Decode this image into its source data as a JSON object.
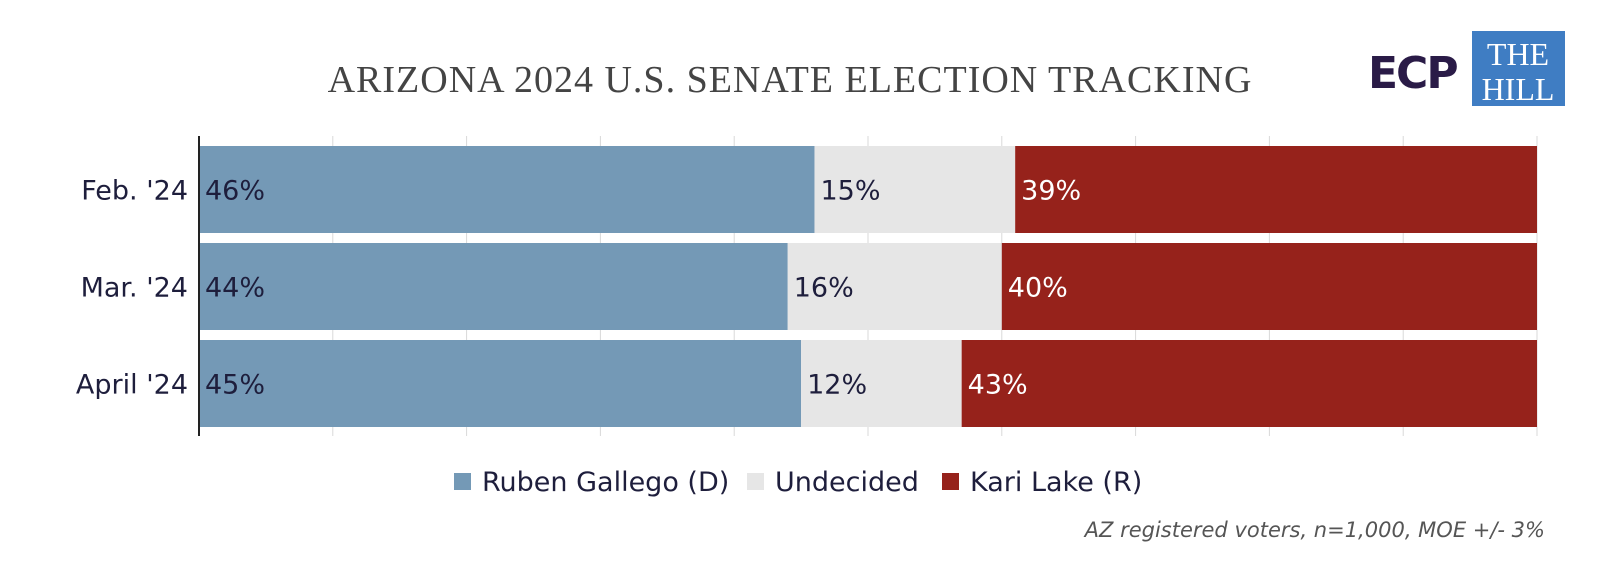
{
  "chart_data": {
    "type": "bar",
    "orientation": "horizontal",
    "stacked": true,
    "title": "ARIZONA 2024 U.S. SENATE ELECTION TRACKING",
    "categories": [
      "Feb. '24",
      "Mar. '24",
      "April '24"
    ],
    "series": [
      {
        "name": "Ruben Gallego (D)",
        "values": [
          46,
          44,
          45
        ],
        "color": "#7499b6",
        "label_color": "#1e1e3c"
      },
      {
        "name": "Undecided",
        "values": [
          15,
          16,
          12
        ],
        "color": "#e6e6e6",
        "label_color": "#1e1e3c"
      },
      {
        "name": "Kari Lake (R)",
        "values": [
          39,
          40,
          43
        ],
        "color": "#96221b",
        "label_color": "#ffffff"
      }
    ],
    "value_suffix": "%",
    "xlim": [
      0,
      100
    ],
    "grid": true,
    "legend_position": "bottom",
    "source_note": "AZ registered voters, n=1,000, MOE +/- 3%"
  },
  "logos": {
    "ecp": "ECP",
    "the_hill": [
      "THE",
      "HILL"
    ],
    "ecp_color": "#2a1b47",
    "hill_color": "#3f7dc3"
  }
}
